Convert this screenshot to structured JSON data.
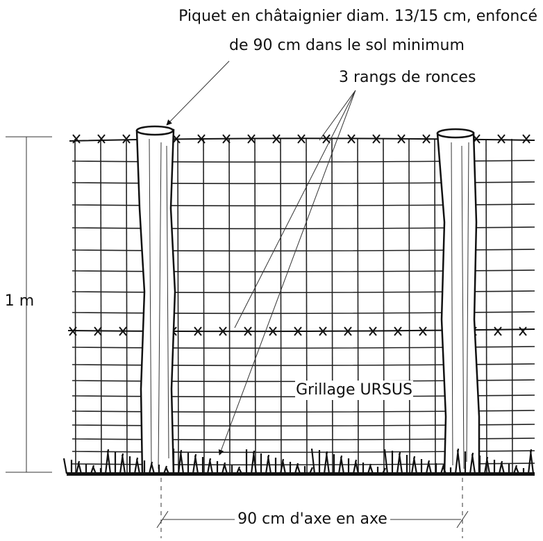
{
  "annotations": {
    "post_line1": "Piquet en châtaignier diam. 13/15 cm, enfoncé",
    "post_line2": "de 90 cm dans le sol minimum",
    "wires": "3 rangs de ronces",
    "height": "1 m",
    "mesh": "Grillage URSUS",
    "spacing": "90 cm d'axe en axe"
  }
}
